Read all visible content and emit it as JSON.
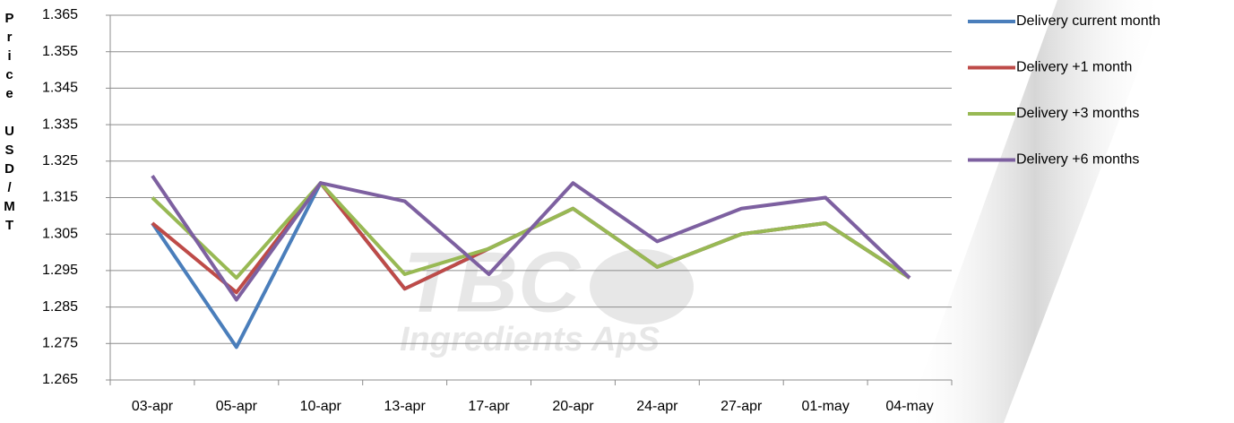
{
  "chart_data": {
    "type": "line",
    "y_label": "Price USD/MT",
    "watermark": [
      "TBC",
      "Ingredients ApS"
    ],
    "categories": [
      "03-apr",
      "05-apr",
      "10-apr",
      "13-apr",
      "17-apr",
      "20-apr",
      "24-apr",
      "27-apr",
      "01-may",
      "04-may"
    ],
    "series": [
      {
        "name": "Delivery current month",
        "color": "#4a7ebb",
        "values": [
          1.308,
          1.274,
          1.319,
          1.29,
          1.301,
          1.312,
          1.296,
          1.305,
          1.308,
          1.293
        ]
      },
      {
        "name": "Delivery +1 month",
        "color": "#be4b48",
        "values": [
          1.308,
          1.289,
          1.319,
          1.29,
          1.301,
          1.312,
          1.296,
          1.305,
          1.308,
          1.293
        ]
      },
      {
        "name": "Delivery +3 months",
        "color": "#98b954",
        "values": [
          1.315,
          1.293,
          1.319,
          1.294,
          1.301,
          1.312,
          1.296,
          1.305,
          1.308,
          1.293
        ]
      },
      {
        "name": "Delivery +6 months",
        "color": "#7d60a0",
        "values": [
          1.321,
          1.287,
          1.319,
          1.314,
          1.294,
          1.319,
          1.303,
          1.312,
          1.315,
          1.293
        ]
      }
    ],
    "ylim": [
      1.265,
      1.365
    ],
    "yticks": [
      1.265,
      1.275,
      1.285,
      1.295,
      1.305,
      1.315,
      1.325,
      1.335,
      1.345,
      1.355,
      1.365
    ],
    "grid": true,
    "legend": "right"
  }
}
